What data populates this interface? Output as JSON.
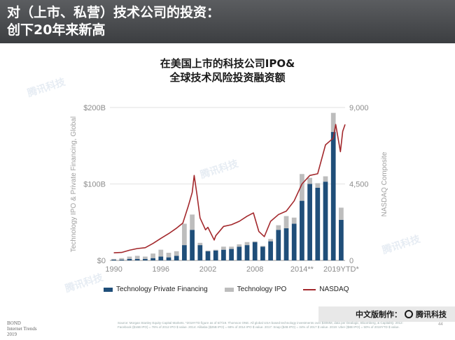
{
  "header": {
    "title": "对（上市、私营）技术公司的投资：\n创下20年来新高"
  },
  "chart_title": "在美国上市的科技公司IPO&\n全球技术风险投资融资额",
  "watermark": "腾讯科技",
  "badge": {
    "prefix": "中文版制作：",
    "brand": "腾讯科技"
  },
  "source_note": "Source: Morgan Stanley Equity Capital Markets. *2019YTD figure as of 6/7/19. Thomson ONE. All global USA-based technology investments over $30MM, data per Dealogic, Bloomberg, & CapitalIQ. 2012: Facebook ($16B IPO) = 76% of 2012 IPO $ value. 2014: Alibaba ($25B IPO) = 69% of 2014 IPO $ value. 2017: Snap ($4B IPO) = 34% of 2017 $ value. 2019: Uber ($8B IPO) = 50% of 2019YTD $ value.",
  "page_number": "44",
  "bond_mark": "BOND\nInternet Trends\n2019",
  "chart_data": {
    "type": "bar",
    "title": "在美国上市的科技公司IPO&\n全球技术风险投资融资额",
    "ylabel_left": "Technology IPO & Private Financing, Global",
    "ylabel_right": "NASDAQ Composite",
    "y_left_ticks": [
      "$0",
      "$100B",
      "$200B"
    ],
    "y_right_ticks": [
      "0",
      "4,500",
      "9,000"
    ],
    "ylim_left": [
      0,
      200
    ],
    "ylim_right": [
      0,
      9000
    ],
    "x_tick_labels": [
      "1990",
      "1996",
      "2002",
      "2008",
      "2014**",
      "2019YTD*"
    ],
    "categories": [
      "1990",
      "1991",
      "1992",
      "1993",
      "1994",
      "1995",
      "1996",
      "1997",
      "1998",
      "1999",
      "2000",
      "2001",
      "2002",
      "2003",
      "2004",
      "2005",
      "2006",
      "2007",
      "2008",
      "2009",
      "2010",
      "2011",
      "2012",
      "2013",
      "2014",
      "2015",
      "2016",
      "2017",
      "2018",
      "2019YTD"
    ],
    "series": [
      {
        "name": "Technology Private Financing",
        "color": "#1f4e79",
        "values": [
          1,
          1,
          2,
          2,
          2,
          3,
          5,
          4,
          6,
          20,
          40,
          20,
          12,
          13,
          14,
          15,
          18,
          20,
          24,
          18,
          25,
          40,
          42,
          48,
          78,
          100,
          95,
          103,
          168,
          53
        ]
      },
      {
        "name": "Technology IPO",
        "color": "#bdbdbd",
        "values": [
          1,
          2,
          3,
          4,
          3,
          6,
          9,
          6,
          6,
          28,
          20,
          3,
          1,
          1,
          4,
          3,
          3,
          4,
          1,
          1,
          3,
          6,
          16,
          8,
          35,
          8,
          6,
          7,
          25,
          16
        ]
      },
      {
        "name": "NASDAQ",
        "color": "#a3282c",
        "x": [
          1990.0,
          1991.0,
          1992.0,
          1993.0,
          1994.0,
          1995.0,
          1996.0,
          1997.0,
          1998.0,
          1998.8,
          1999.5,
          2000.0,
          2000.25,
          2000.6,
          2001.0,
          2001.7,
          2002.0,
          2002.8,
          2003.0,
          2004.0,
          2005.0,
          2006.0,
          2007.0,
          2007.8,
          2008.5,
          2009.2,
          2010.0,
          2011.0,
          2012.0,
          2013.0,
          2014.0,
          2015.0,
          2016.0,
          2017.0,
          2018.0,
          2018.3,
          2018.9,
          2019.2,
          2019.5
        ],
        "values": [
          450,
          470,
          600,
          700,
          750,
          1000,
          1300,
          1580,
          1900,
          2200,
          3200,
          4000,
          5000,
          3900,
          2500,
          1800,
          1950,
          1200,
          1450,
          2000,
          2100,
          2300,
          2600,
          2800,
          1700,
          1400,
          2300,
          2700,
          2900,
          3500,
          4500,
          5000,
          5100,
          6800,
          7200,
          8000,
          6400,
          7600,
          8000
        ]
      }
    ],
    "legend_position": "bottom",
    "grid": true
  }
}
